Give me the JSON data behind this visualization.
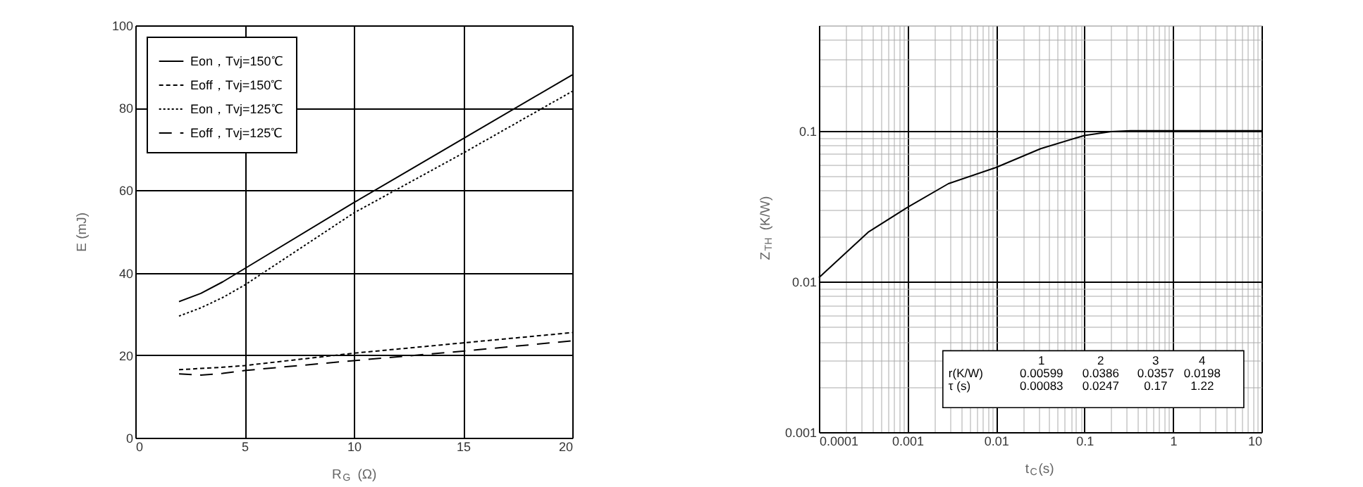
{
  "chart_data": [
    {
      "type": "line",
      "xlabel": "R$_{G}$ (Ω)",
      "ylabel": "E (mJ)",
      "x": [
        2,
        3,
        4,
        5,
        10,
        15,
        20
      ],
      "series": [
        {
          "name": "Eon，Tvj=150℃",
          "color": "#000000",
          "line_style": "solid",
          "values": [
            33,
            35,
            37.8,
            41,
            57,
            72.5,
            88
          ]
        },
        {
          "name": "Eoff，Tvj=150℃",
          "color": "#000000",
          "line_style": "dashed",
          "values": [
            16.5,
            16.8,
            17.1,
            17.5,
            20.5,
            23,
            25.5
          ]
        },
        {
          "name": "Eon，Tvj=125℃",
          "color": "#000000",
          "line_style": "dotted",
          "values": [
            29.5,
            31.5,
            34,
            37,
            54.5,
            69,
            84
          ]
        },
        {
          "name": "Eoff，Tvj=125℃",
          "color": "#000000",
          "line_style": "dashed",
          "values": [
            15.5,
            15.2,
            15.6,
            16.3,
            18.7,
            21,
            23.5
          ]
        }
      ],
      "xlim": [
        0,
        20
      ],
      "xticks": [
        0,
        5,
        10,
        15,
        20
      ],
      "ylim": [
        0,
        100
      ],
      "yticks": [
        0,
        20,
        40,
        60,
        80,
        100
      ],
      "grid": true,
      "legend": "top left",
      "marker": "none"
    },
    {
      "type": "line",
      "xlabel": "t$_{C}$(s)",
      "ylabel": "Z$_{TH}$ (K/W)",
      "log": "xy",
      "x": [
        0.0001,
        0.00036,
        0.001,
        0.0029,
        0.01,
        0.032,
        0.1,
        0.2,
        0.33,
        10
      ],
      "series": [
        {
          "color": "#000000",
          "line_style": "solid",
          "values": [
            0.0106,
            0.0212,
            0.031,
            0.0445,
            0.057,
            0.076,
            0.093,
            0.0986,
            0.1,
            0.1
          ]
        }
      ],
      "xlim": [
        0.0001,
        10
      ],
      "xticks": [
        0.0001,
        {
          "value": 0.0002,
          "label": null
        },
        {
          "value": 0.0003,
          "label": null
        },
        {
          "value": 0.0004,
          "label": null
        },
        {
          "value": 0.0005,
          "label": null
        },
        {
          "value": 0.0006,
          "label": null
        },
        {
          "value": 0.0007,
          "label": null
        },
        {
          "value": 0.0008,
          "label": null
        },
        {
          "value": 0.0009,
          "label": null
        },
        0.001,
        {
          "value": 0.002,
          "label": null
        },
        {
          "value": 0.003,
          "label": null
        },
        {
          "value": 0.004,
          "label": null
        },
        {
          "value": 0.005,
          "label": null
        },
        {
          "value": 0.006,
          "label": null
        },
        {
          "value": 0.007,
          "label": null
        },
        {
          "value": 0.008,
          "label": null
        },
        {
          "value": 0.009,
          "label": null
        },
        0.01,
        {
          "value": 0.02,
          "label": null
        },
        {
          "value": 0.03,
          "label": null
        },
        {
          "value": 0.04,
          "label": null
        },
        {
          "value": 0.05,
          "label": null
        },
        {
          "value": 0.06,
          "label": null
        },
        {
          "value": 0.07,
          "label": null
        },
        {
          "value": 0.08,
          "label": null
        },
        {
          "value": 0.09,
          "label": null
        },
        0.1,
        {
          "value": 0.2,
          "label": null
        },
        {
          "value": 0.3,
          "label": null
        },
        {
          "value": 0.4,
          "label": null
        },
        {
          "value": 0.5,
          "label": null
        },
        {
          "value": 0.6,
          "label": null
        },
        {
          "value": 0.7,
          "label": null
        },
        {
          "value": 0.8,
          "label": null
        },
        {
          "value": 0.9,
          "label": null
        },
        1,
        {
          "value": 2,
          "label": null
        },
        {
          "value": 3,
          "label": null
        },
        {
          "value": 4,
          "label": null
        },
        {
          "value": 5,
          "label": null
        },
        {
          "value": 6,
          "label": null
        },
        {
          "value": 7,
          "label": null
        },
        {
          "value": 8,
          "label": null
        },
        {
          "value": 9,
          "label": null
        },
        10
      ],
      "ylim": [
        0.001,
        0.5
      ],
      "yticks": [
        0.001,
        {
          "value": 0.002,
          "label": null
        },
        {
          "value": 0.003,
          "label": null
        },
        {
          "value": 0.004,
          "label": null
        },
        {
          "value": 0.005,
          "label": null
        },
        {
          "value": 0.006,
          "label": null
        },
        {
          "value": 0.007,
          "label": null
        },
        {
          "value": 0.008,
          "label": null
        },
        {
          "value": 0.009,
          "label": null
        },
        0.01,
        {
          "value": 0.02,
          "label": null
        },
        {
          "value": 0.03,
          "label": null
        },
        {
          "value": 0.04,
          "label": null
        },
        {
          "value": 0.05,
          "label": null
        },
        {
          "value": 0.06,
          "label": null
        },
        {
          "value": 0.07,
          "label": null
        },
        {
          "value": 0.08,
          "label": null
        },
        {
          "value": 0.09,
          "label": null
        },
        0.1,
        {
          "value": 0.2,
          "label": null
        },
        {
          "value": 0.3,
          "label": null
        },
        {
          "value": 0.4,
          "label": null
        },
        {
          "value": 0.5,
          "label": null
        }
      ],
      "grid": true,
      "marker": "none",
      "annotations": [
        "1",
        "2",
        "3",
        "4",
        "r(K/W)",
        "0.00599",
        "0.0386",
        "0.0357",
        "0.0198",
        "τ (s)",
        "0.00083",
        "0.0247",
        "0.17",
        "1.22"
      ]
    }
  ]
}
